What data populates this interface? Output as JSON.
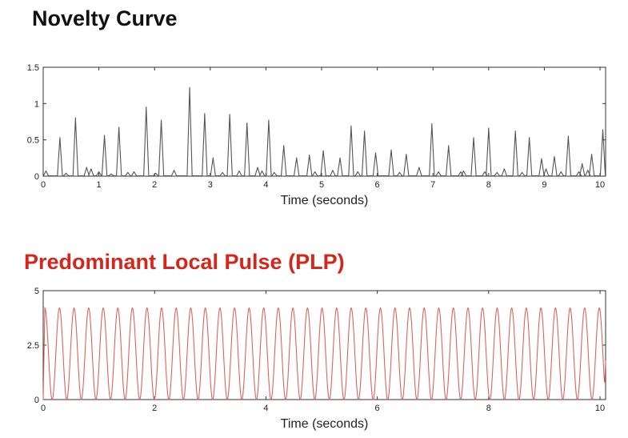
{
  "chart_data": [
    {
      "type": "line",
      "title": "Novelty Curve",
      "xlabel": "Time (seconds)",
      "ylabel": "",
      "xlim": [
        0,
        10.1
      ],
      "ylim": [
        0,
        1.5
      ],
      "xticks": [
        0,
        1,
        2,
        3,
        4,
        5,
        6,
        7,
        8,
        9,
        10
      ],
      "yticks": [
        0,
        0.5,
        1,
        1.5
      ],
      "ytick_labels": [
        "0",
        "0.5",
        "1",
        "1.5"
      ],
      "series": [
        {
          "color": "#555555",
          "peaks": [
            [
              0.05,
              0.07
            ],
            [
              0.3,
              0.53
            ],
            [
              0.41,
              0.04
            ],
            [
              0.58,
              0.8
            ],
            [
              0.78,
              0.12
            ],
            [
              0.86,
              0.1
            ],
            [
              1.0,
              0.06
            ],
            [
              1.1,
              0.56
            ],
            [
              1.22,
              0.03
            ],
            [
              1.36,
              0.67
            ],
            [
              1.52,
              0.05
            ],
            [
              1.63,
              0.06
            ],
            [
              1.85,
              0.95
            ],
            [
              2.02,
              0.04
            ],
            [
              2.12,
              0.77
            ],
            [
              2.35,
              0.08
            ],
            [
              2.63,
              1.22
            ],
            [
              2.9,
              0.86
            ],
            [
              3.05,
              0.25
            ],
            [
              3.22,
              0.05
            ],
            [
              3.35,
              0.85
            ],
            [
              3.52,
              0.07
            ],
            [
              3.66,
              0.73
            ],
            [
              3.85,
              0.12
            ],
            [
              3.93,
              0.07
            ],
            [
              4.05,
              0.77
            ],
            [
              4.15,
              0.05
            ],
            [
              4.32,
              0.42
            ],
            [
              4.55,
              0.25
            ],
            [
              4.78,
              0.29
            ],
            [
              4.88,
              0.06
            ],
            [
              5.03,
              0.35
            ],
            [
              5.2,
              0.08
            ],
            [
              5.33,
              0.25
            ],
            [
              5.53,
              0.69
            ],
            [
              5.65,
              0.06
            ],
            [
              5.77,
              0.62
            ],
            [
              5.97,
              0.32
            ],
            [
              6.25,
              0.36
            ],
            [
              6.4,
              0.05
            ],
            [
              6.52,
              0.3
            ],
            [
              6.75,
              0.12
            ],
            [
              6.98,
              0.72
            ],
            [
              7.1,
              0.06
            ],
            [
              7.28,
              0.42
            ],
            [
              7.5,
              0.06
            ],
            [
              7.55,
              0.07
            ],
            [
              7.73,
              0.53
            ],
            [
              7.93,
              0.06
            ],
            [
              8.0,
              0.66
            ],
            [
              8.15,
              0.05
            ],
            [
              8.28,
              0.1
            ],
            [
              8.48,
              0.62
            ],
            [
              8.6,
              0.05
            ],
            [
              8.73,
              0.53
            ],
            [
              8.95,
              0.24
            ],
            [
              9.03,
              0.1
            ],
            [
              9.18,
              0.27
            ],
            [
              9.3,
              0.06
            ],
            [
              9.43,
              0.55
            ],
            [
              9.62,
              0.06
            ],
            [
              9.68,
              0.17
            ],
            [
              9.78,
              0.08
            ],
            [
              9.85,
              0.3
            ],
            [
              10.05,
              0.64
            ]
          ]
        }
      ]
    },
    {
      "type": "line",
      "title": "Predominant Local Pulse (PLP)",
      "xlabel": "Time (seconds)",
      "ylabel": "",
      "xlim": [
        0,
        10.1
      ],
      "ylim": [
        0,
        5
      ],
      "xticks": [
        0,
        2,
        4,
        6,
        8,
        10
      ],
      "yticks": [
        0,
        2.5,
        5
      ],
      "ytick_labels": [
        "0",
        "2.5",
        "5"
      ],
      "series": [
        {
          "color": "#d9655d",
          "start": 0.03,
          "period": 0.262,
          "count": 39,
          "amplitude": 4.2,
          "end_value": 1.8
        }
      ]
    }
  ]
}
